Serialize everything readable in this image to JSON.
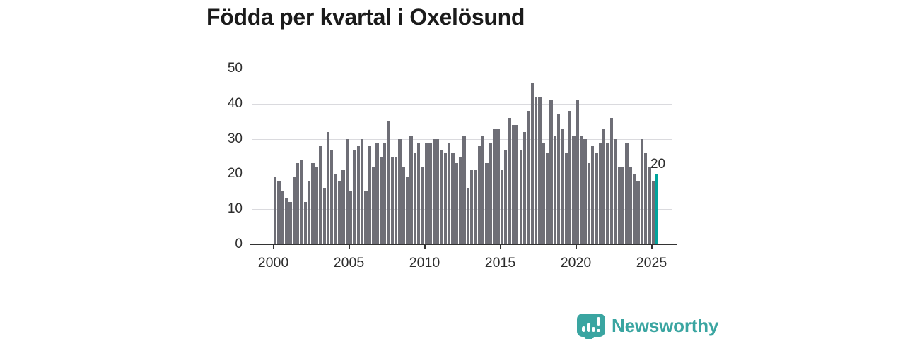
{
  "title": "Födda per kvartal i Oxelösund",
  "chart_data": {
    "type": "bar",
    "title": "Födda per kvartal i Oxelösund",
    "xlabel": "",
    "ylabel": "",
    "ylim": [
      0,
      50
    ],
    "grid": true,
    "y_ticks": [
      0,
      10,
      20,
      30,
      40,
      50
    ],
    "x_tick_labels": [
      "2000",
      "2005",
      "2010",
      "2015",
      "2020",
      "2025"
    ],
    "x_start": "2000 Q1",
    "x_end": "2025 Q2",
    "period": "quarterly",
    "values": [
      19,
      18,
      15,
      13,
      12,
      19,
      23,
      24,
      12,
      18,
      23,
      22,
      28,
      16,
      32,
      27,
      20,
      18,
      21,
      30,
      15,
      27,
      28,
      30,
      15,
      28,
      22,
      29,
      25,
      29,
      35,
      25,
      25,
      30,
      22,
      19,
      31,
      26,
      29,
      22,
      29,
      29,
      30,
      30,
      27,
      26,
      29,
      26,
      23,
      25,
      31,
      16,
      21,
      21,
      28,
      31,
      23,
      29,
      33,
      33,
      21,
      27,
      36,
      34,
      34,
      27,
      32,
      38,
      46,
      42,
      42,
      29,
      26,
      41,
      31,
      37,
      33,
      26,
      38,
      31,
      41,
      31,
      30,
      23,
      28,
      26,
      29,
      33,
      29,
      36,
      30,
      22,
      22,
      29,
      22,
      20,
      18,
      30,
      26,
      22,
      18,
      20
    ],
    "last_value_label": "20",
    "highlight_last_bar": true,
    "bar_color": "#6e6e76",
    "highlight_color": "#00a49c",
    "axis_color": "#333333",
    "gridline_color": "#dadade",
    "legend": "none"
  },
  "branding": {
    "logo_text": "Newsworthy",
    "logo_color": "#3aa5a1",
    "icon": "speech-bubble-bar-chart-icon"
  }
}
